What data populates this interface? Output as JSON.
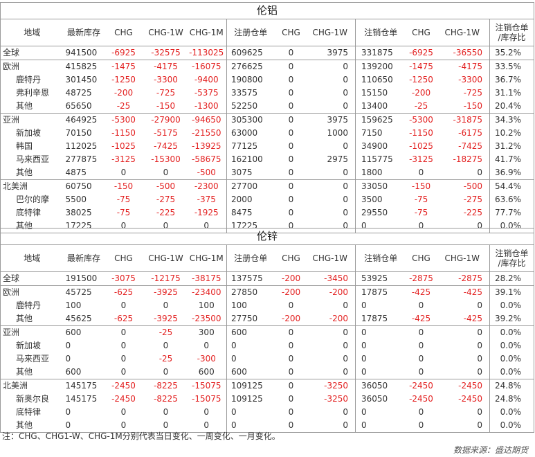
{
  "headers": {
    "region": "地域",
    "stock": "最新库存",
    "chg": "CHG",
    "chg1w": "CHG-1W",
    "chg1m": "CHG-1M",
    "registered": "注册仓单",
    "cancelled": "注销仓单",
    "ratio_line1": "注销仓单",
    "ratio_line2": "/库存比"
  },
  "tables": [
    {
      "title": "伦铝",
      "groups": [
        {
          "rows": [
            [
              "全球",
              "941500",
              "-6925",
              "-32575",
              "-113025",
              "609625",
              "0",
              "3975",
              "331875",
              "-6925",
              "-36550",
              "35.2%"
            ]
          ]
        },
        {
          "rows": [
            [
              "欧洲",
              "415825",
              "-1475",
              "-4175",
              "-16075",
              "276625",
              "0",
              "0",
              "139200",
              "-1475",
              "-4175",
              "33.5%"
            ],
            [
              "鹿特丹",
              "301450",
              "-1250",
              "-3300",
              "-9400",
              "190800",
              "0",
              "0",
              "110650",
              "-1250",
              "-3300",
              "36.7%"
            ],
            [
              "弗利辛恩",
              "48725",
              "-200",
              "-725",
              "-5375",
              "33575",
              "0",
              "0",
              "15150",
              "-200",
              "-725",
              "31.1%"
            ],
            [
              "其他",
              "65650",
              "-25",
              "-150",
              "-1300",
              "52250",
              "0",
              "0",
              "13400",
              "-25",
              "-150",
              "20.4%"
            ]
          ]
        },
        {
          "rows": [
            [
              "亚洲",
              "464925",
              "-5300",
              "-27900",
              "-94650",
              "305300",
              "0",
              "3975",
              "159625",
              "-5300",
              "-31875",
              "34.3%"
            ],
            [
              "新加坡",
              "70150",
              "-1150",
              "-5175",
              "-21550",
              "63000",
              "0",
              "1000",
              "7150",
              "-1150",
              "-6175",
              "10.2%"
            ],
            [
              "韩国",
              "112025",
              "-1025",
              "-7425",
              "-13925",
              "77125",
              "0",
              "0",
              "34900",
              "-1025",
              "-7425",
              "31.2%"
            ],
            [
              "马来西亚",
              "277875",
              "-3125",
              "-15300",
              "-58675",
              "162100",
              "0",
              "2975",
              "115775",
              "-3125",
              "-18275",
              "41.7%"
            ],
            [
              "其他",
              "4875",
              "0",
              "0",
              "-500",
              "3075",
              "0",
              "0",
              "1800",
              "0",
              "0",
              "36.9%"
            ]
          ]
        },
        {
          "rows": [
            [
              "北美洲",
              "60750",
              "-150",
              "-500",
              "-2300",
              "27700",
              "0",
              "0",
              "33050",
              "-150",
              "-500",
              "54.4%"
            ],
            [
              "巴尔的摩",
              "5500",
              "-75",
              "-275",
              "-375",
              "2000",
              "0",
              "0",
              "3500",
              "-75",
              "-275",
              "63.6%"
            ],
            [
              "底特律",
              "38025",
              "-75",
              "-225",
              "-1925",
              "8475",
              "0",
              "0",
              "29550",
              "-75",
              "-225",
              "77.7%"
            ],
            [
              "其他",
              "17225",
              "0",
              "0",
              "0",
              "17225",
              "0",
              "0",
              "0",
              "0",
              "0",
              "0.0%"
            ]
          ]
        }
      ]
    },
    {
      "title": "伦锌",
      "groups": [
        {
          "rows": [
            [
              "全球",
              "191500",
              "-3075",
              "-12175",
              "-38175",
              "137575",
              "-200",
              "-3450",
              "53925",
              "-2875",
              "-2875",
              "28.2%"
            ]
          ]
        },
        {
          "rows": [
            [
              "欧洲",
              "45725",
              "-625",
              "-3925",
              "-23400",
              "27850",
              "-200",
              "-200",
              "17875",
              "-425",
              "-425",
              "39.1%"
            ],
            [
              "鹿特丹",
              "100",
              "0",
              "0",
              "100",
              "100",
              "0",
              "0",
              "0",
              "0",
              "0",
              "0.0%"
            ],
            [
              "其他",
              "45625",
              "-625",
              "-3925",
              "-23500",
              "27750",
              "-200",
              "-200",
              "17875",
              "-425",
              "-425",
              "39.2%"
            ]
          ]
        },
        {
          "rows": [
            [
              "亚洲",
              "600",
              "0",
              "-25",
              "300",
              "600",
              "0",
              "0",
              "0",
              "0",
              "0",
              "0.0%"
            ],
            [
              "新加坡",
              "0",
              "0",
              "0",
              "0",
              "0",
              "0",
              "0",
              "0",
              "0",
              "0",
              "0.0%"
            ],
            [
              "马来西亚",
              "0",
              "0",
              "-25",
              "-300",
              "0",
              "0",
              "0",
              "0",
              "0",
              "0",
              "0.0%"
            ],
            [
              "其他",
              "600",
              "0",
              "0",
              "600",
              "600",
              "0",
              "0",
              "0",
              "0",
              "0",
              "0.0%"
            ]
          ]
        },
        {
          "rows": [
            [
              "北美洲",
              "145175",
              "-2450",
              "-8225",
              "-15075",
              "109125",
              "0",
              "-3250",
              "36050",
              "-2450",
              "-2450",
              "24.8%"
            ],
            [
              "新奥尔良",
              "145175",
              "-2450",
              "-8225",
              "-15075",
              "109125",
              "0",
              "-3250",
              "36050",
              "-2450",
              "-2450",
              "24.8%"
            ],
            [
              "底特律",
              "0",
              "0",
              "0",
              "0",
              "0",
              "0",
              "0",
              "0",
              "0",
              "0",
              "0.0%"
            ],
            [
              "其他",
              "0",
              "0",
              "0",
              "0",
              "0",
              "0",
              "0",
              "0",
              "0",
              "0",
              "0.0%"
            ]
          ]
        }
      ]
    }
  ],
  "note": "注：CHG、CHG1-W、CHG-1M分别代表当日变化、一周变化、一月变化。",
  "source": "数据来源：盛达期货",
  "colors": {
    "negative": "#e32121",
    "text": "#333333",
    "border": "#9a9a9a"
  }
}
